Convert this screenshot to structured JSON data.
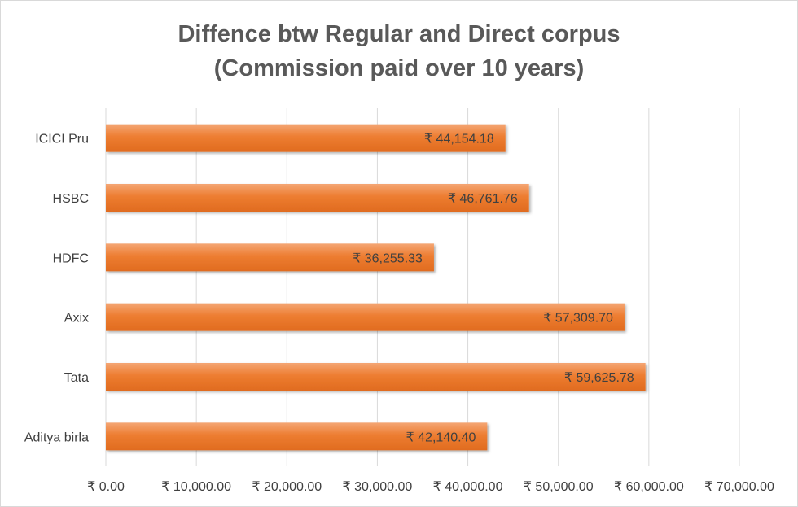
{
  "chart_data": {
    "type": "bar",
    "orientation": "horizontal",
    "title": "Diffence btw Regular and Direct corpus",
    "subtitle": "(Commission paid over 10 years)",
    "categories": [
      "ICICI Pru",
      "HSBC",
      "HDFC",
      "Axix",
      "Tata",
      "Aditya birla"
    ],
    "values": [
      44154.18,
      46761.76,
      36255.33,
      57309.7,
      59625.78,
      42140.4
    ],
    "data_labels": [
      "₹ 44,154.18",
      "₹ 46,761.76",
      "₹ 36,255.33",
      "₹ 57,309.70",
      "₹ 59,625.78",
      "₹ 42,140.40"
    ],
    "xlim": [
      0,
      70000
    ],
    "x_ticks": [
      0,
      10000,
      20000,
      30000,
      40000,
      50000,
      60000,
      70000
    ],
    "x_tick_labels": [
      "₹ 0.00",
      "₹ 10,000.00",
      "₹ 20,000.00",
      "₹ 30,000.00",
      "₹ 40,000.00",
      "₹ 50,000.00",
      "₹ 60,000.00",
      "₹ 70,000.00"
    ],
    "grid": true,
    "bar_color": "#ed7d31"
  }
}
